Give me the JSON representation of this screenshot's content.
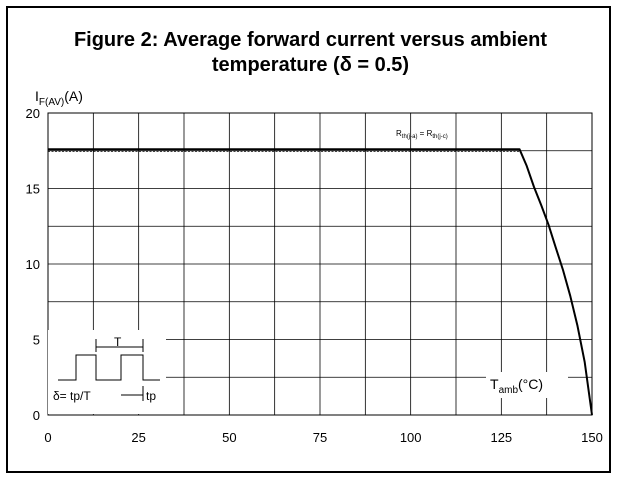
{
  "title": {
    "line1": "Figure 2: Average forward current versus ambient",
    "line2": "temperature (δ = 0.5)"
  },
  "axis": {
    "y_label_main": "I",
    "y_label_sub": "F(AV)",
    "y_label_unit": "(A)",
    "x_label_main": "T",
    "x_label_sub": "amb",
    "x_label_unit": "(°C)"
  },
  "annotation": {
    "rth_main_1": "R",
    "rth_sub_1": "th(j-a)",
    "rth_eq": " = ",
    "rth_main_2": "R",
    "rth_sub_2": "th(j-c)"
  },
  "inset": {
    "period_label": "T",
    "formula": "δ= tp/T",
    "pulse_label": "tp"
  },
  "chart_data": {
    "type": "line",
    "title": "Figure 2: Average forward current versus ambient temperature (δ = 0.5)",
    "xlabel": "Tamb(°C)",
    "ylabel": "IF(AV)(A)",
    "xlim": [
      0,
      150
    ],
    "ylim": [
      0,
      20
    ],
    "x_ticks": [
      0,
      25,
      50,
      75,
      100,
      125,
      150
    ],
    "y_ticks": [
      0,
      5,
      10,
      15,
      20
    ],
    "x_tick_labels": [
      "0",
      "25",
      "50",
      "75",
      "100",
      "125",
      "150"
    ],
    "y_tick_labels": [
      "0",
      "5",
      "10",
      "15",
      "20"
    ],
    "grid": true,
    "series": [
      {
        "name": "Rth(j-a) = Rth(j-c)",
        "x": [
          0,
          130,
          132,
          134,
          136,
          138,
          140,
          142,
          144,
          146,
          148,
          150
        ],
        "y": [
          17.6,
          17.6,
          16.5,
          15.1,
          13.9,
          12.6,
          11.1,
          9.6,
          7.9,
          5.9,
          3.5,
          0
        ]
      }
    ]
  }
}
